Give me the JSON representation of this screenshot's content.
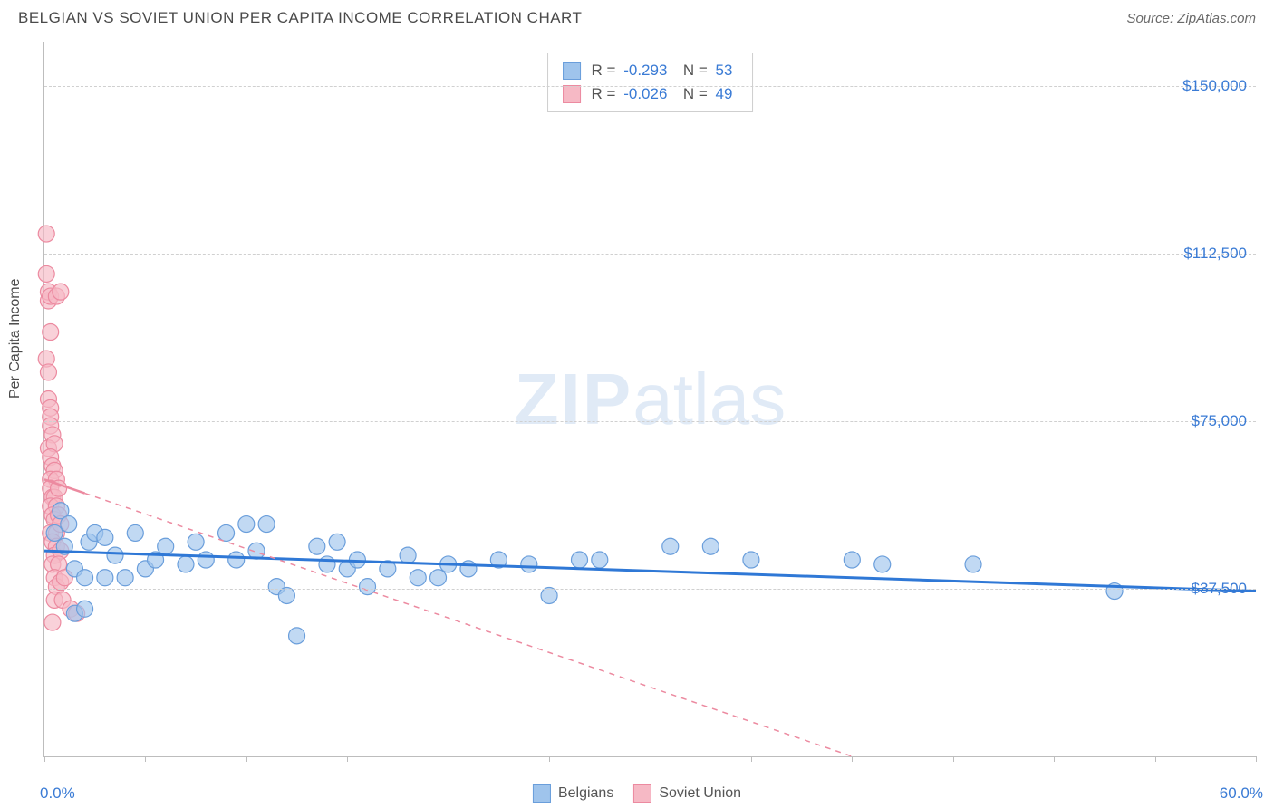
{
  "header": {
    "title": "BELGIAN VS SOVIET UNION PER CAPITA INCOME CORRELATION CHART",
    "source": "Source: ZipAtlas.com"
  },
  "watermark": {
    "bold": "ZIP",
    "light": "atlas"
  },
  "chart": {
    "type": "scatter",
    "background_color": "#ffffff",
    "grid_color": "#d0d0d0",
    "axis_color": "#bdbdbd",
    "ylabel": "Per Capita Income",
    "ylabel_fontsize": 16,
    "xlim": [
      0,
      60
    ],
    "ylim": [
      0,
      160000
    ],
    "y_gridlines": [
      37500,
      75000,
      112500,
      150000
    ],
    "y_tick_labels": [
      "$37,500",
      "$75,000",
      "$112,500",
      "$150,000"
    ],
    "y_tick_color": "#3a7bd5",
    "x_tick_positions": [
      0,
      5,
      10,
      15,
      20,
      25,
      30,
      35,
      40,
      45,
      50,
      55,
      60
    ],
    "x_end_labels": {
      "min": "0.0%",
      "max": "60.0%"
    },
    "x_label_color": "#3a7bd5",
    "series": {
      "belgians": {
        "label": "Belgians",
        "marker_color": "#9fc4ec",
        "marker_border": "#6a9edb",
        "marker_radius": 9,
        "marker_opacity": 0.65,
        "trend": {
          "type": "solid",
          "color": "#2f78d6",
          "width": 3,
          "x1": 0,
          "y1": 46000,
          "x2": 60,
          "y2": 37000
        },
        "points": [
          [
            0.5,
            50000
          ],
          [
            0.8,
            55000
          ],
          [
            1.0,
            47000
          ],
          [
            1.2,
            52000
          ],
          [
            1.5,
            42000
          ],
          [
            1.5,
            32000
          ],
          [
            2.0,
            40000
          ],
          [
            2.0,
            33000
          ],
          [
            2.2,
            48000
          ],
          [
            2.5,
            50000
          ],
          [
            3.0,
            40000
          ],
          [
            3.0,
            49000
          ],
          [
            3.5,
            45000
          ],
          [
            4.0,
            40000
          ],
          [
            4.5,
            50000
          ],
          [
            5.0,
            42000
          ],
          [
            5.5,
            44000
          ],
          [
            6.0,
            47000
          ],
          [
            7.0,
            43000
          ],
          [
            7.5,
            48000
          ],
          [
            8.0,
            44000
          ],
          [
            9.0,
            50000
          ],
          [
            9.5,
            44000
          ],
          [
            10.0,
            52000
          ],
          [
            10.5,
            46000
          ],
          [
            11.0,
            52000
          ],
          [
            11.5,
            38000
          ],
          [
            12.0,
            36000
          ],
          [
            12.5,
            27000
          ],
          [
            13.5,
            47000
          ],
          [
            14.0,
            43000
          ],
          [
            14.5,
            48000
          ],
          [
            15.0,
            42000
          ],
          [
            15.5,
            44000
          ],
          [
            16.0,
            38000
          ],
          [
            17.0,
            42000
          ],
          [
            18.0,
            45000
          ],
          [
            18.5,
            40000
          ],
          [
            19.5,
            40000
          ],
          [
            20.0,
            43000
          ],
          [
            21.0,
            42000
          ],
          [
            22.5,
            44000
          ],
          [
            24.0,
            43000
          ],
          [
            25.0,
            36000
          ],
          [
            26.5,
            44000
          ],
          [
            27.5,
            44000
          ],
          [
            31.0,
            47000
          ],
          [
            33.0,
            47000
          ],
          [
            35.0,
            44000
          ],
          [
            40.0,
            44000
          ],
          [
            41.5,
            43000
          ],
          [
            46.0,
            43000
          ],
          [
            53.0,
            37000
          ]
        ]
      },
      "soviet": {
        "label": "Soviet Union",
        "marker_color": "#f6b9c5",
        "marker_border": "#ec8aa0",
        "marker_radius": 9,
        "marker_opacity": 0.65,
        "trend": {
          "type": "dashed",
          "color": "#ec8aa0",
          "width": 1.5,
          "x1": 0,
          "y1": 62000,
          "x2": 40,
          "y2": 0
        },
        "trend_solid_segment": {
          "x1": 0,
          "y1": 62000,
          "x2": 2.0,
          "y2": 58900
        },
        "points": [
          [
            0.1,
            117000
          ],
          [
            0.1,
            108000
          ],
          [
            0.2,
            102000
          ],
          [
            0.2,
            104000
          ],
          [
            0.3,
            103000
          ],
          [
            0.3,
            95000
          ],
          [
            0.6,
            103000
          ],
          [
            0.8,
            104000
          ],
          [
            0.1,
            89000
          ],
          [
            0.2,
            86000
          ],
          [
            0.2,
            80000
          ],
          [
            0.3,
            78000
          ],
          [
            0.3,
            76000
          ],
          [
            0.3,
            74000
          ],
          [
            0.4,
            72000
          ],
          [
            0.2,
            69000
          ],
          [
            0.5,
            70000
          ],
          [
            0.3,
            67000
          ],
          [
            0.4,
            65000
          ],
          [
            0.5,
            64000
          ],
          [
            0.3,
            62000
          ],
          [
            0.6,
            62000
          ],
          [
            0.3,
            60000
          ],
          [
            0.4,
            58000
          ],
          [
            0.5,
            58000
          ],
          [
            0.7,
            60000
          ],
          [
            0.3,
            56000
          ],
          [
            0.6,
            56000
          ],
          [
            0.4,
            54000
          ],
          [
            0.5,
            53000
          ],
          [
            0.7,
            54000
          ],
          [
            0.3,
            50000
          ],
          [
            0.6,
            50000
          ],
          [
            0.8,
            52000
          ],
          [
            0.4,
            48000
          ],
          [
            0.6,
            47000
          ],
          [
            0.5,
            45000
          ],
          [
            0.8,
            46000
          ],
          [
            0.4,
            43000
          ],
          [
            0.7,
            43000
          ],
          [
            0.5,
            40000
          ],
          [
            0.6,
            38000
          ],
          [
            0.8,
            39000
          ],
          [
            1.0,
            40000
          ],
          [
            0.5,
            35000
          ],
          [
            0.9,
            35000
          ],
          [
            1.3,
            33000
          ],
          [
            1.6,
            32000
          ],
          [
            0.4,
            30000
          ]
        ]
      }
    },
    "stats_box": {
      "rows": [
        {
          "series": "belgians",
          "R_label": "R =",
          "R": "-0.293",
          "N_label": "N =",
          "N": "53"
        },
        {
          "series": "soviet",
          "R_label": "R =",
          "R": "-0.026",
          "N_label": "N =",
          "N": "49"
        }
      ]
    },
    "bottom_legend": [
      {
        "series": "belgians",
        "label": "Belgians"
      },
      {
        "series": "soviet",
        "label": "Soviet Union"
      }
    ]
  }
}
